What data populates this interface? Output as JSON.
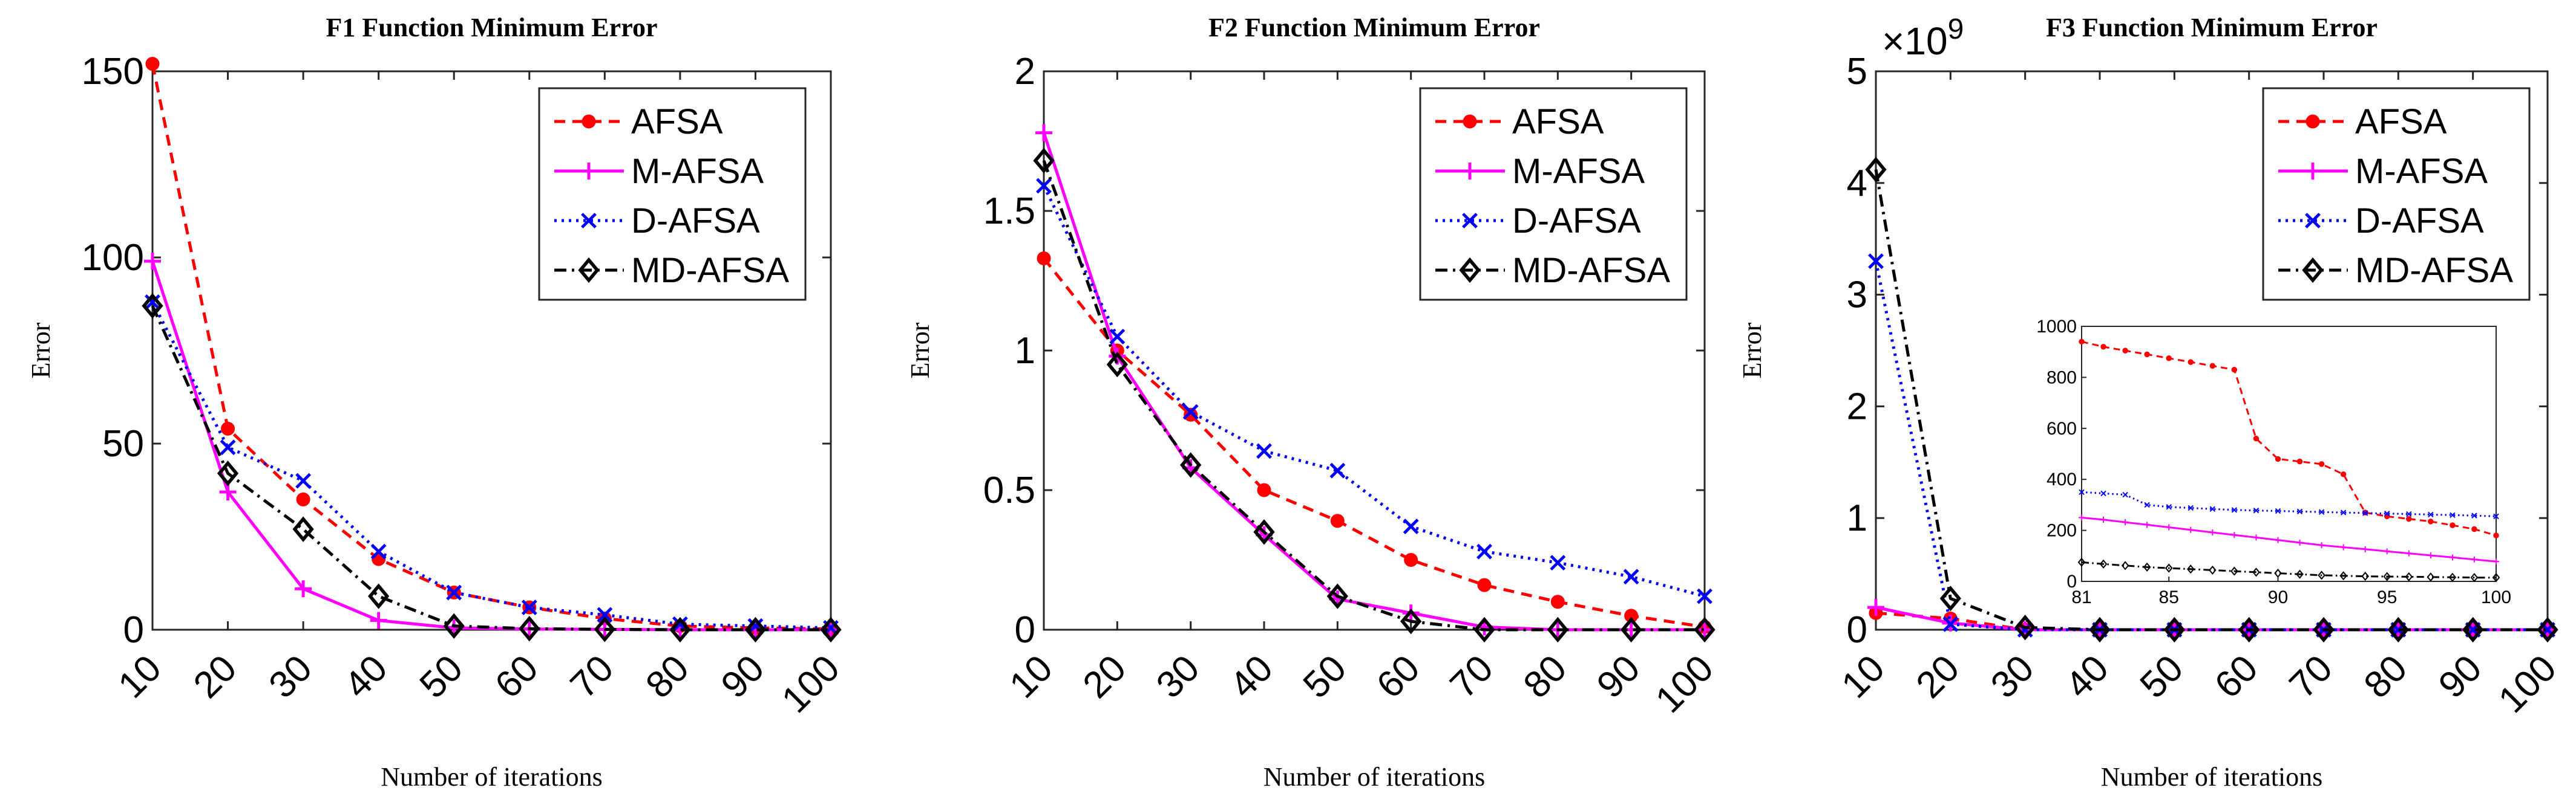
{
  "chart_data": [
    {
      "type": "line",
      "title": "F1 Function Minimum Error",
      "xlabel": "Number of iterations",
      "ylabel": "Error",
      "x": [
        10,
        20,
        30,
        40,
        50,
        60,
        70,
        80,
        90,
        100
      ],
      "xlim": [
        10,
        100
      ],
      "ylim": [
        0,
        150
      ],
      "yticks": [
        0,
        50,
        100,
        150
      ],
      "ytick_labels": [
        "0",
        "50",
        "100",
        "150"
      ],
      "legend_position": "top-right",
      "series": [
        {
          "name": "AFSA",
          "color": "#ff0000",
          "style": "dashed",
          "marker": "dot",
          "values": [
            152,
            54,
            35,
            19,
            10,
            6,
            3,
            1,
            0.5,
            0.2
          ]
        },
        {
          "name": "M-AFSA",
          "color": "#ff00ff",
          "style": "solid",
          "marker": "plus",
          "values": [
            99,
            37,
            11,
            2.5,
            0.5,
            0.2,
            0.1,
            0,
            0,
            0
          ]
        },
        {
          "name": "D-AFSA",
          "color": "#0000ff",
          "style": "dotted",
          "marker": "x",
          "values": [
            88,
            49,
            40,
            21,
            10,
            6,
            4,
            1.5,
            1,
            0.5
          ]
        },
        {
          "name": "MD-AFSA",
          "color": "#000000",
          "style": "dashdot",
          "marker": "diamond",
          "values": [
            87,
            42,
            27,
            9,
            1,
            0.3,
            0.1,
            0,
            0,
            0
          ]
        }
      ]
    },
    {
      "type": "line",
      "title": "F2 Function Minimum Error",
      "xlabel": "Number of iterations",
      "ylabel": "Error",
      "x": [
        10,
        20,
        30,
        40,
        50,
        60,
        70,
        80,
        90,
        100
      ],
      "xlim": [
        10,
        100
      ],
      "ylim": [
        0,
        2
      ],
      "yticks": [
        0,
        0.5,
        1,
        1.5,
        2
      ],
      "ytick_labels": [
        "0",
        "0.5",
        "1",
        "1.5",
        "2"
      ],
      "legend_position": "top-right",
      "series": [
        {
          "name": "AFSA",
          "color": "#ff0000",
          "style": "dashed",
          "marker": "dot",
          "values": [
            1.33,
            1.0,
            0.77,
            0.5,
            0.39,
            0.25,
            0.16,
            0.1,
            0.05,
            0.01
          ]
        },
        {
          "name": "M-AFSA",
          "color": "#ff00ff",
          "style": "solid",
          "marker": "plus",
          "values": [
            1.78,
            0.98,
            0.58,
            0.34,
            0.11,
            0.06,
            0.01,
            0,
            0,
            0
          ]
        },
        {
          "name": "D-AFSA",
          "color": "#0000ff",
          "style": "dotted",
          "marker": "x",
          "values": [
            1.59,
            1.05,
            0.78,
            0.64,
            0.57,
            0.37,
            0.28,
            0.24,
            0.19,
            0.12
          ]
        },
        {
          "name": "MD-AFSA",
          "color": "#000000",
          "style": "dashdot",
          "marker": "diamond",
          "values": [
            1.68,
            0.95,
            0.59,
            0.35,
            0.12,
            0.03,
            0,
            0,
            0,
            0
          ]
        }
      ]
    },
    {
      "type": "line",
      "title": "F3 Function Minimum Error",
      "xlabel": "Number of iterations",
      "ylabel": "Error",
      "exponent_base": "×10",
      "exponent_power": "9",
      "x": [
        10,
        20,
        30,
        40,
        50,
        60,
        70,
        80,
        90,
        100
      ],
      "xlim": [
        10,
        100
      ],
      "ylim": [
        0,
        5
      ],
      "yticks": [
        0,
        1,
        2,
        3,
        4,
        5
      ],
      "ytick_labels": [
        "0",
        "1",
        "2",
        "3",
        "4",
        "5"
      ],
      "legend_position": "top-right",
      "series": [
        {
          "name": "AFSA",
          "color": "#ff0000",
          "style": "dashed",
          "marker": "dot",
          "values": [
            0.15,
            0.1,
            0,
            0,
            0,
            0,
            0,
            0,
            0,
            0
          ]
        },
        {
          "name": "M-AFSA",
          "color": "#ff00ff",
          "style": "solid",
          "marker": "plus",
          "values": [
            0.2,
            0.06,
            0,
            0,
            0,
            0,
            0,
            0,
            0,
            0
          ]
        },
        {
          "name": "D-AFSA",
          "color": "#0000ff",
          "style": "dotted",
          "marker": "x",
          "values": [
            3.3,
            0.05,
            0,
            0,
            0,
            0,
            0,
            0,
            0,
            0
          ]
        },
        {
          "name": "MD-AFSA",
          "color": "#000000",
          "style": "dashdot",
          "marker": "diamond",
          "values": [
            4.12,
            0.28,
            0.02,
            0,
            0,
            0,
            0,
            0,
            0,
            0
          ]
        }
      ],
      "inset": {
        "x": [
          81,
          82,
          83,
          84,
          85,
          86,
          87,
          88,
          89,
          90,
          91,
          92,
          93,
          94,
          95,
          96,
          97,
          98,
          99,
          100
        ],
        "xlim": [
          81,
          100
        ],
        "ylim": [
          0,
          1000
        ],
        "xticks": [
          81,
          85,
          90,
          95,
          100
        ],
        "xtick_labels": [
          "81",
          "85",
          "90",
          "95",
          "100"
        ],
        "yticks": [
          0,
          200,
          400,
          600,
          800,
          1000
        ],
        "ytick_labels": [
          "0",
          "200",
          "400",
          "600",
          "800",
          "1000"
        ],
        "series": [
          {
            "name": "AFSA",
            "color": "#ff0000",
            "style": "dashed",
            "marker": "dot",
            "values": [
              940,
              920,
              905,
              890,
              875,
              860,
              845,
              830,
              560,
              480,
              470,
              460,
              420,
              270,
              255,
              245,
              235,
              220,
              205,
              180
            ]
          },
          {
            "name": "M-AFSA",
            "color": "#ff00ff",
            "style": "solid",
            "marker": "plus",
            "values": [
              250,
              242,
              232,
              222,
              212,
              202,
              192,
              182,
              172,
              162,
              152,
              142,
              134,
              126,
              118,
              110,
              102,
              94,
              86,
              78
            ]
          },
          {
            "name": "D-AFSA",
            "color": "#0000ff",
            "style": "dotted",
            "marker": "x",
            "values": [
              350,
              345,
              340,
              300,
              292,
              288,
              284,
              280,
              278,
              276,
              274,
              272,
              270,
              268,
              266,
              264,
              262,
              260,
              258,
              255
            ]
          },
          {
            "name": "MD-AFSA",
            "color": "#000000",
            "style": "dashdot",
            "marker": "diamond",
            "values": [
              75,
              68,
              62,
              56,
              52,
              48,
              44,
              40,
              36,
              32,
              28,
              24,
              22,
              20,
              19,
              18,
              17,
              16,
              15,
              15
            ]
          }
        ]
      }
    }
  ]
}
